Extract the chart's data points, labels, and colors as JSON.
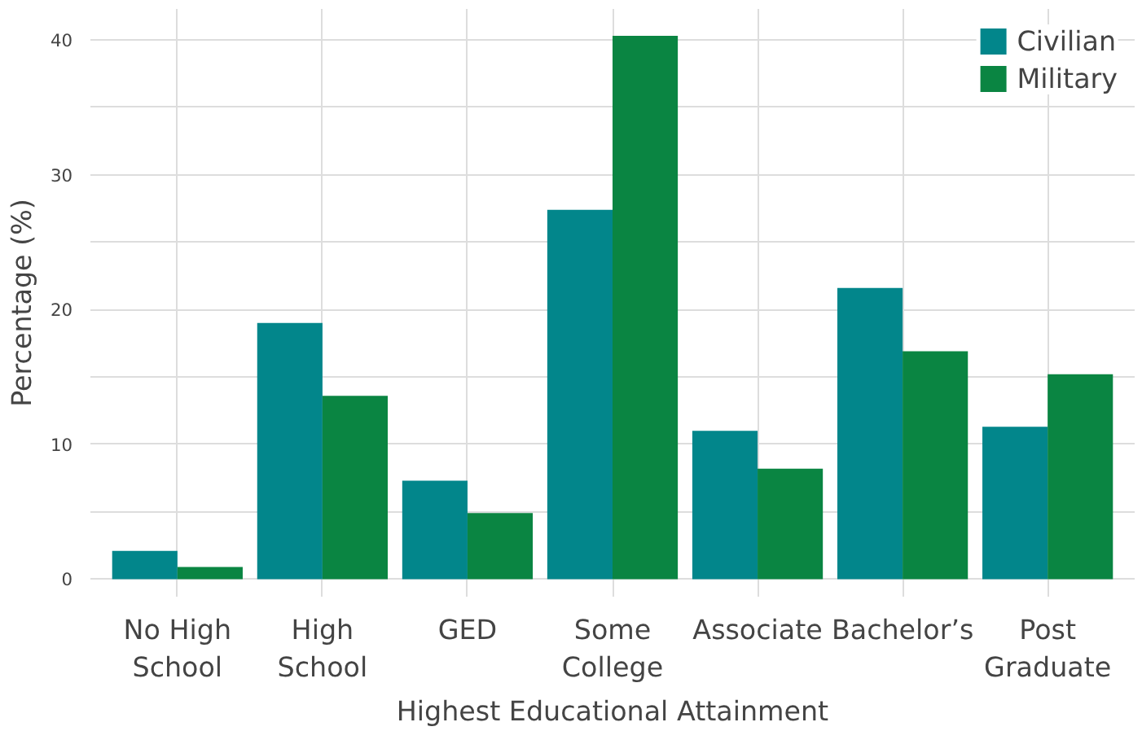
{
  "chart_data": {
    "type": "bar",
    "xlabel": "Highest Educational Attainment",
    "ylabel": "Percentage (%)",
    "categories": [
      "No High School",
      "High School",
      "GED",
      "Some College",
      "Associate",
      "Bachelor’s",
      "Post Graduate"
    ],
    "series": [
      {
        "name": "Civilian",
        "color": "#02868b",
        "values": [
          2.1,
          19.0,
          7.3,
          27.4,
          11.0,
          21.6,
          11.3
        ]
      },
      {
        "name": "Military",
        "color": "#0a8542",
        "values": [
          0.9,
          13.6,
          4.9,
          40.3,
          8.2,
          16.9,
          15.2
        ]
      }
    ],
    "ylim": [
      -1.3,
      42.3
    ],
    "yticks": [
      0,
      {
        "value": 5,
        "label": null
      },
      10,
      {
        "value": 15,
        "label": null
      },
      20,
      {
        "value": 25,
        "label": null
      },
      30,
      {
        "value": 35,
        "label": null
      },
      40
    ],
    "grid": true,
    "legend": "top right"
  }
}
